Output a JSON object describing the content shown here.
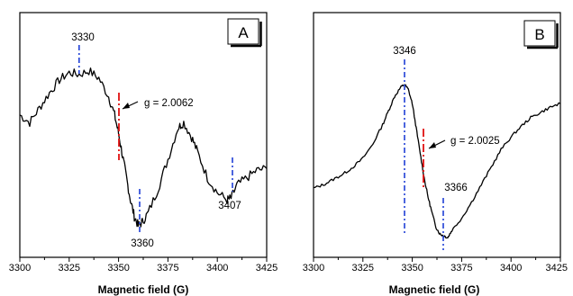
{
  "chart_data": [
    {
      "panel_label": "A",
      "type": "line",
      "xlabel": "Magnetic field (G)",
      "ylabel": "",
      "xlim": [
        3300,
        3425
      ],
      "x_ticks": [
        "3300",
        "3325",
        "3350",
        "3375",
        "3400",
        "3425"
      ],
      "y_ticks_shown": false,
      "grid": false,
      "series": [
        {
          "x": [
            3300,
            3305,
            3310,
            3315,
            3320,
            3325,
            3330,
            3335,
            3340,
            3345,
            3348,
            3350,
            3352,
            3354,
            3356,
            3358,
            3360,
            3362,
            3365,
            3370,
            3375,
            3380,
            3383,
            3387,
            3390,
            3395,
            3400,
            3405,
            3407,
            3410,
            3415,
            3420,
            3425
          ],
          "y": [
            0.62,
            0.58,
            0.66,
            0.74,
            0.81,
            0.85,
            0.84,
            0.86,
            0.82,
            0.72,
            0.62,
            0.52,
            0.4,
            0.28,
            0.16,
            0.07,
            0.02,
            0.04,
            0.09,
            0.22,
            0.38,
            0.55,
            0.58,
            0.5,
            0.42,
            0.28,
            0.2,
            0.16,
            0.17,
            0.24,
            0.28,
            0.32,
            0.33
          ]
        }
      ],
      "color": "#000000",
      "annotations": [
        {
          "text": "3330",
          "x": 3330
        },
        {
          "text": "3360",
          "x": 3360
        },
        {
          "text": "3407",
          "x": 3407
        },
        {
          "text": "g = 2.0062",
          "x": 3350
        }
      ],
      "marker_colors": {
        "peak": "#1f3fd6",
        "g": "#e01010"
      }
    },
    {
      "panel_label": "B",
      "type": "line",
      "xlabel": "Magnetic field (G)",
      "ylabel": "",
      "xlim": [
        3300,
        3425
      ],
      "x_ticks": [
        "3300",
        "3325",
        "3350",
        "3375",
        "3400",
        "3425"
      ],
      "y_ticks_shown": false,
      "grid": false,
      "series": [
        {
          "x": [
            3300,
            3305,
            3310,
            3315,
            3320,
            3325,
            3330,
            3335,
            3338,
            3341,
            3344,
            3346,
            3348,
            3350,
            3352,
            3354,
            3356,
            3358,
            3360,
            3362,
            3364,
            3366,
            3368,
            3370,
            3375,
            3380,
            3385,
            3390,
            3395,
            3400,
            3405,
            3410,
            3415,
            3420,
            3425
          ],
          "y": [
            0.3,
            0.32,
            0.35,
            0.38,
            0.42,
            0.47,
            0.55,
            0.66,
            0.74,
            0.82,
            0.87,
            0.89,
            0.86,
            0.78,
            0.64,
            0.5,
            0.36,
            0.25,
            0.16,
            0.08,
            0.04,
            0.03,
            0.02,
            0.06,
            0.13,
            0.22,
            0.32,
            0.42,
            0.52,
            0.59,
            0.65,
            0.7,
            0.73,
            0.76,
            0.78
          ]
        }
      ],
      "color": "#000000",
      "annotations": [
        {
          "text": "3346",
          "x": 3346
        },
        {
          "text": "3366",
          "x": 3366
        },
        {
          "text": "g = 2.0025",
          "x": 3355
        }
      ],
      "marker_colors": {
        "peak": "#1f3fd6",
        "g": "#e01010"
      }
    }
  ]
}
